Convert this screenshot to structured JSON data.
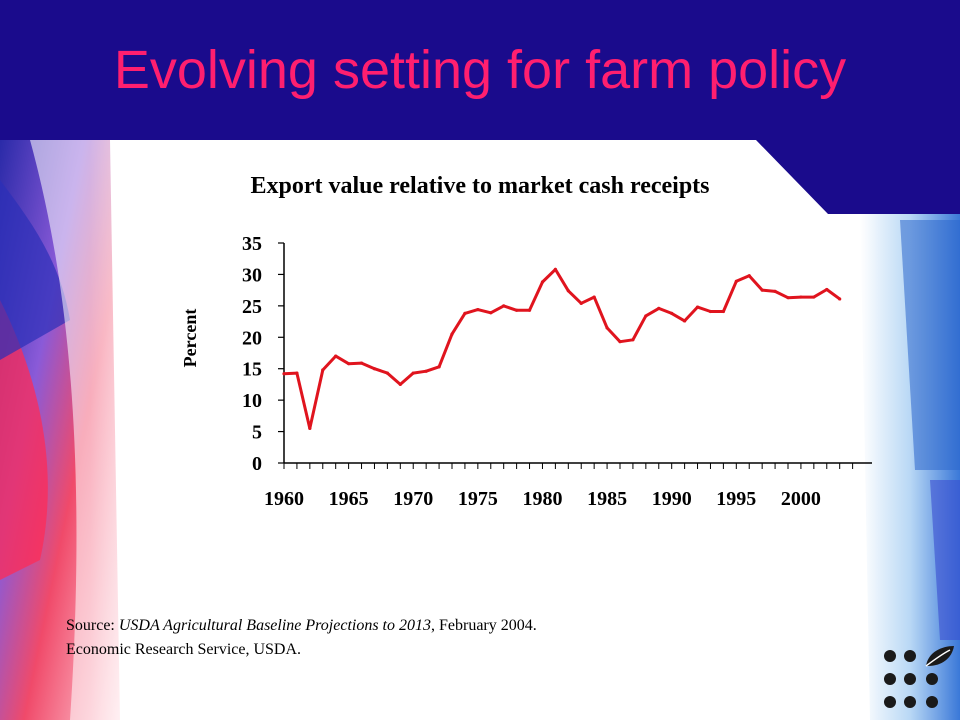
{
  "slide": {
    "title": "Evolving setting for farm policy"
  },
  "source": {
    "prefix": "Source: ",
    "publication": "USDA Agricultural Baseline Projections to 2013",
    "suffix": ", February 2004.",
    "line2": "Economic Research Service, USDA."
  },
  "colors": {
    "header_bg": "#1a0b8c",
    "title": "#ff1f6f",
    "line": "#e0141e"
  },
  "chart_data": {
    "type": "line",
    "title": "Export value relative to market cash receipts",
    "xlabel": "",
    "ylabel": "Percent",
    "ylim": [
      0,
      35
    ],
    "xlim": [
      1960,
      2003
    ],
    "y_ticks": [
      "0",
      "5",
      "10",
      "15",
      "20",
      "25",
      "30",
      "35"
    ],
    "x_tick_labels": [
      "1960",
      "1965",
      "1970",
      "1975",
      "1980",
      "1985",
      "1990",
      "1995",
      "2000"
    ],
    "grid": false,
    "legend": "none",
    "x": [
      1960,
      1961,
      1962,
      1963,
      1964,
      1965,
      1966,
      1967,
      1968,
      1969,
      1970,
      1971,
      1972,
      1973,
      1974,
      1975,
      1976,
      1977,
      1978,
      1979,
      1980,
      1981,
      1982,
      1983,
      1984,
      1985,
      1986,
      1987,
      1988,
      1989,
      1990,
      1991,
      1992,
      1993,
      1994,
      1995,
      1996,
      1997,
      1998,
      1999,
      2000,
      2001,
      2002,
      2003
    ],
    "series": [
      {
        "values": [
          14.2,
          14.3,
          5.5,
          14.8,
          17.0,
          15.8,
          15.9,
          15.0,
          14.3,
          12.5,
          14.3,
          14.6,
          15.3,
          20.5,
          23.8,
          24.4,
          23.9,
          25.0,
          24.3,
          24.3,
          28.8,
          30.8,
          27.4,
          25.4,
          26.4,
          21.5,
          19.3,
          19.6,
          23.4,
          24.6,
          23.8,
          22.6,
          24.8,
          24.1,
          24.1,
          28.9,
          29.8,
          27.5,
          27.3,
          26.3,
          26.4,
          26.4,
          27.6,
          26.1
        ]
      }
    ]
  }
}
